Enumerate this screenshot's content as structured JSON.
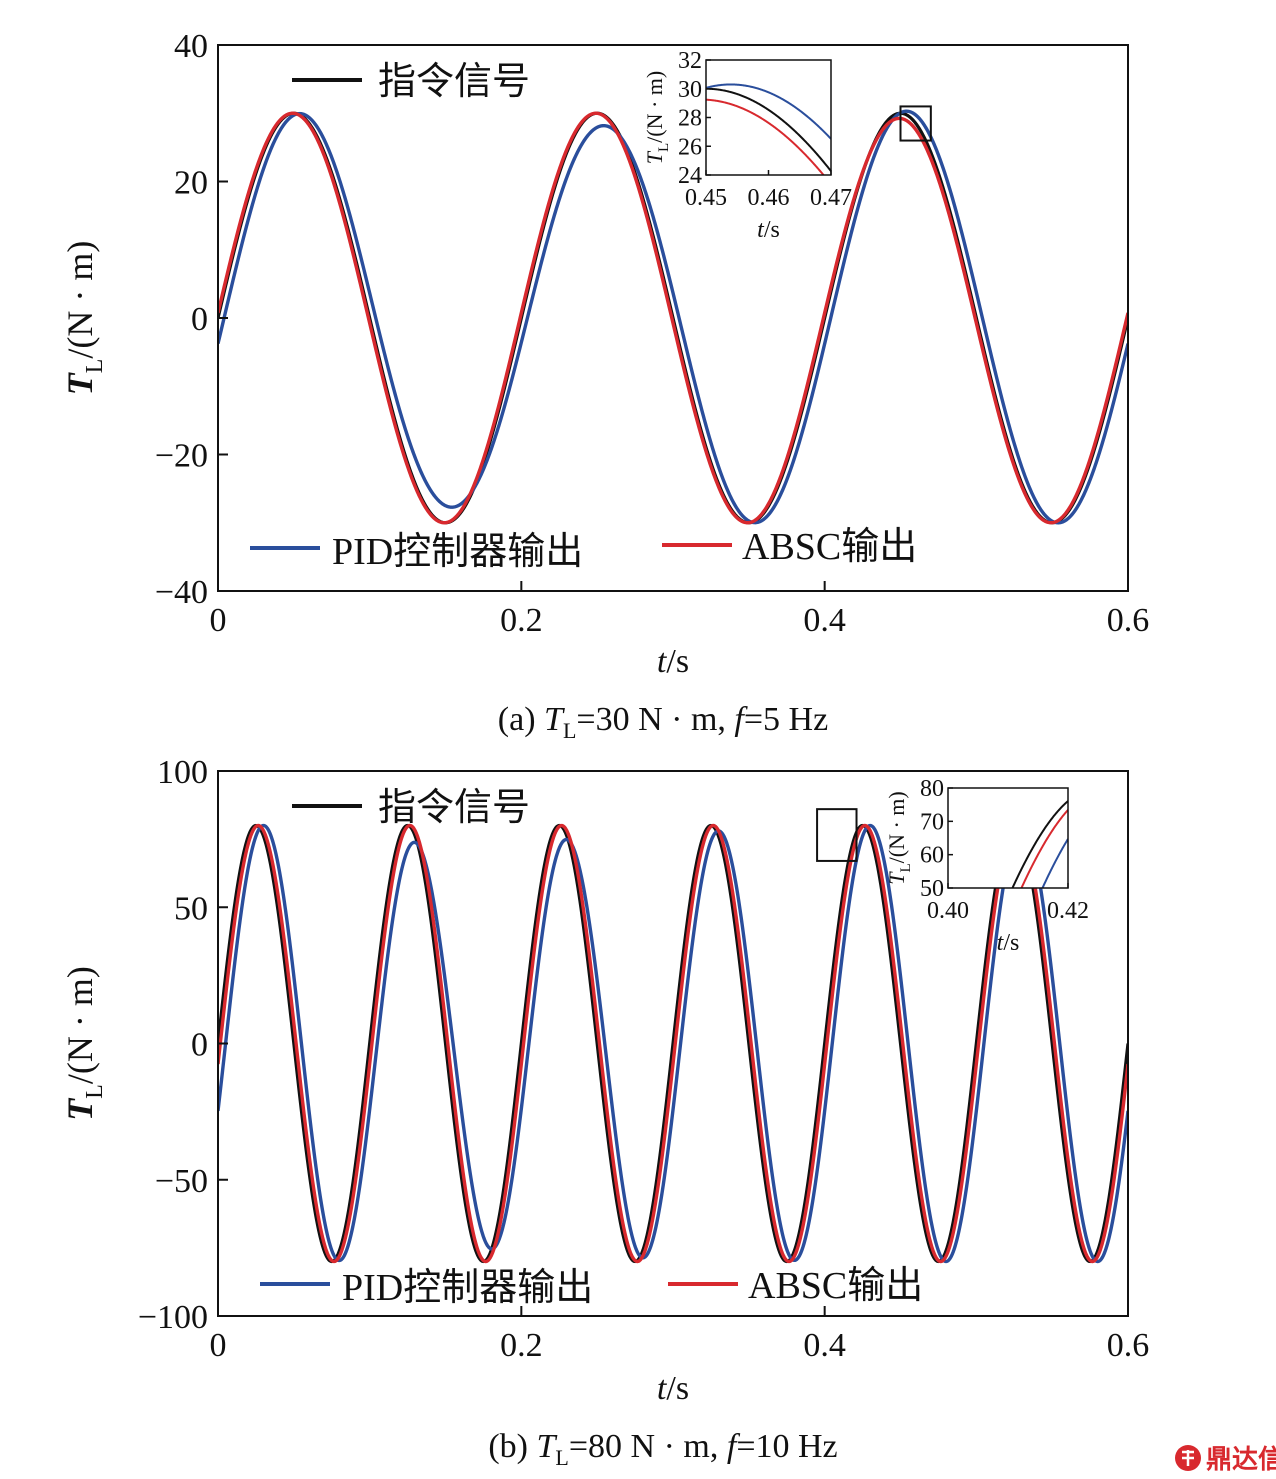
{
  "colors": {
    "ref": "#111111",
    "pid": "#2a4e9c",
    "absc": "#d8292e"
  },
  "watermark": {
    "text": "鼎达信",
    "icon": "dingdaxin-logo-icon"
  },
  "chart_data": [
    {
      "id": "a",
      "type": "line",
      "caption": {
        "prefix": "(a) ",
        "var": "T",
        "sub": "L",
        "rest": "=30 N · m, ",
        "fvar": "f",
        "frest": "=5 Hz"
      },
      "xlabel": {
        "var": "t",
        "unit": "/s"
      },
      "ylabel": {
        "var": "T",
        "sub": "L",
        "unit": "/(N · m)"
      },
      "xlim": [
        0,
        0.6
      ],
      "ylim": [
        -40,
        40
      ],
      "xticks": [
        0,
        0.2,
        0.4,
        0.6
      ],
      "xtick_labels": [
        "0",
        "0.2",
        "0.4",
        "0.6"
      ],
      "yticks": [
        -40,
        -20,
        0,
        20,
        40
      ],
      "ytick_labels": [
        "−40",
        "−20",
        "0",
        "20",
        "40"
      ],
      "amplitude": 30,
      "frequency_hz": 5,
      "legend": {
        "ref": "指令信号",
        "pid": "PID控制器输出",
        "absc": "ABSC输出"
      },
      "series": [
        {
          "name": "指令信号",
          "key": "ref"
        },
        {
          "name": "PID控制器输出",
          "key": "pid"
        },
        {
          "name": "ABSC输出",
          "key": "absc"
        }
      ],
      "zoom_box": {
        "x": [
          0.45,
          0.47
        ],
        "y": [
          26,
          31
        ]
      },
      "inset": {
        "xlim": [
          0.45,
          0.47
        ],
        "ylim": [
          24,
          32
        ],
        "xticks": [
          0.45,
          0.46,
          0.47
        ],
        "xtick_labels": [
          "0.45",
          "0.46",
          "0.47"
        ],
        "yticks": [
          24,
          26,
          28,
          30,
          32
        ],
        "ytick_labels": [
          "24",
          "26",
          "28",
          "30",
          "32"
        ],
        "xlabel": {
          "var": "t",
          "unit": "/s"
        },
        "ylabel": {
          "var": "T",
          "sub": "L",
          "unit": "/(N · m)"
        }
      }
    },
    {
      "id": "b",
      "type": "line",
      "caption": {
        "prefix": "(b) ",
        "var": "T",
        "sub": "L",
        "rest": "=80 N · m, ",
        "fvar": "f",
        "frest": "=10 Hz"
      },
      "xlabel": {
        "var": "t",
        "unit": "/s"
      },
      "ylabel": {
        "var": "T",
        "sub": "L",
        "unit": "/(N · m)"
      },
      "xlim": [
        0,
        0.6
      ],
      "ylim": [
        -100,
        100
      ],
      "xticks": [
        0,
        0.2,
        0.4,
        0.6
      ],
      "xtick_labels": [
        "0",
        "0.2",
        "0.4",
        "0.6"
      ],
      "yticks": [
        -100,
        -50,
        0,
        50,
        100
      ],
      "ytick_labels": [
        "−100",
        "−50",
        "0",
        "50",
        "100"
      ],
      "amplitude": 80,
      "frequency_hz": 10,
      "legend": {
        "ref": "指令信号",
        "pid": "PID控制器输出",
        "absc": "ABSC输出"
      },
      "series": [
        {
          "name": "指令信号",
          "key": "ref"
        },
        {
          "name": "PID控制器输出",
          "key": "pid"
        },
        {
          "name": "ABSC输出",
          "key": "absc"
        }
      ],
      "zoom_box": {
        "x": [
          0.395,
          0.421
        ],
        "y": [
          67,
          86
        ]
      },
      "inset": {
        "xlim": [
          0.4,
          0.42
        ],
        "ylim": [
          50,
          80
        ],
        "xticks": [
          0.4,
          0.42
        ],
        "xtick_labels": [
          "0.40",
          "0.42"
        ],
        "yticks": [
          50,
          60,
          70,
          80
        ],
        "ytick_labels": [
          "50",
          "60",
          "70",
          "80"
        ],
        "xlabel": {
          "var": "t",
          "unit": "/s"
        },
        "ylabel": {
          "var": "T",
          "sub": "L",
          "unit": "/(N · m)"
        }
      }
    }
  ]
}
